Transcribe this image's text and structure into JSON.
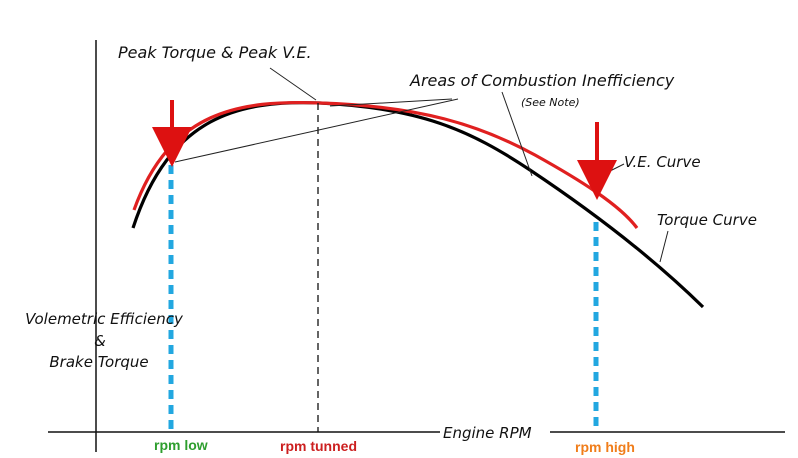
{
  "diagram": {
    "labels": {
      "peak_torque_ve": "Peak Torque & Peak V.E.",
      "areas_inefficiency": "Areas of Combustion Inefficiency",
      "see_note": "(See Note)",
      "ve_curve": "V.E. Curve",
      "torque_curve": "Torque Curve",
      "y_axis_line1": "Volemetric Efficiency",
      "y_axis_line2": "&",
      "y_axis_line3": "Brake Torque",
      "x_axis": "Engine RPM",
      "rpm_low": "rpm low",
      "rpm_tunned": "rpm tunned",
      "rpm_high": "rpm high"
    },
    "colors": {
      "ve_curve": "#e02020",
      "torque_curve": "#000000",
      "arrows": "#dd1111",
      "markers": "#22a7e0",
      "rpm_low": "#2e9e2e",
      "rpm_tunned": "#cc1f1f",
      "rpm_high": "#f07d1a"
    }
  }
}
